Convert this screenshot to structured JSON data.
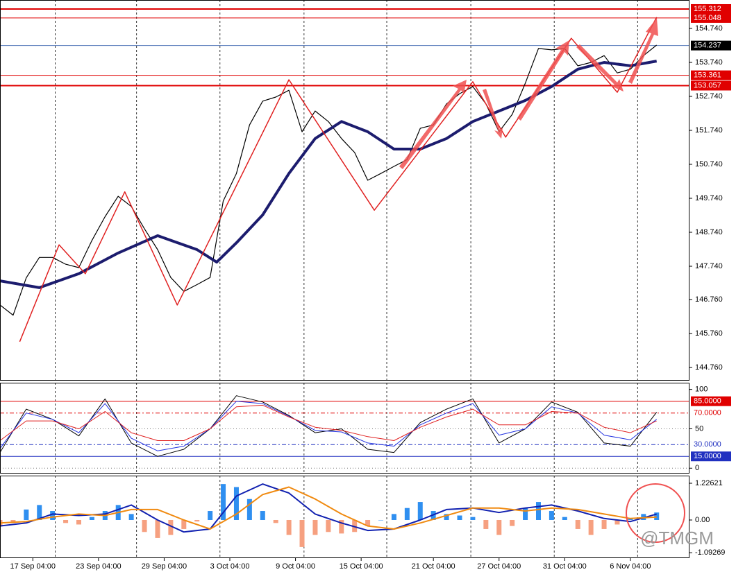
{
  "chart_data": [
    {
      "type": "line",
      "xlim": [
        0,
        105
      ],
      "ylim": [
        144.373,
        155.577
      ],
      "yticks": [
        {
          "value": 154.74,
          "label": "154.740"
        },
        {
          "value": 153.74,
          "label": "153.740"
        },
        {
          "value": 152.74,
          "label": "152.740"
        },
        {
          "value": 151.74,
          "label": "151.740"
        },
        {
          "value": 150.74,
          "label": "150.740"
        },
        {
          "value": 149.74,
          "label": "149.740"
        },
        {
          "value": 148.74,
          "label": "148.740"
        },
        {
          "value": 147.74,
          "label": "147.740"
        },
        {
          "value": 146.76,
          "label": "146.760"
        },
        {
          "value": 145.76,
          "label": "145.760"
        },
        {
          "value": 144.76,
          "label": "144.760"
        }
      ],
      "vlines": [
        8.4,
        20.8,
        33.5,
        46.3,
        58.9,
        71.7,
        84.4,
        97.1
      ],
      "levels": [
        {
          "value": 155.312,
          "color": "#e00000",
          "width": 2,
          "label_color": "#e00000"
        },
        {
          "value": 155.048,
          "color": "#e00000",
          "width": 1,
          "label_color": "#e00000"
        },
        {
          "value": 154.237,
          "color": "#4a6fb5",
          "width": 1,
          "label_color": "#000000"
        },
        {
          "value": 153.361,
          "color": "#e00000",
          "width": 1,
          "label_color": "#e00000"
        },
        {
          "value": 153.057,
          "color": "#e00000",
          "width": 2,
          "label_color": "#e00000"
        }
      ],
      "series": [
        {
          "color": "#000000",
          "width": 1.2,
          "x": [
            0,
            2,
            4,
            6,
            8,
            10,
            12,
            14,
            16,
            18,
            20,
            22,
            24,
            26,
            28,
            30,
            32,
            34,
            36,
            38,
            40,
            42,
            44,
            46,
            48,
            50,
            52,
            54,
            56,
            58,
            60,
            62,
            64,
            66,
            68,
            70,
            72,
            74,
            76,
            78,
            80,
            82,
            84,
            86,
            88,
            90,
            92,
            94,
            96,
            98,
            100
          ],
          "values": [
            146.6,
            146.3,
            147.4,
            148.0,
            148.0,
            147.8,
            147.7,
            148.5,
            149.2,
            149.8,
            149.5,
            148.84,
            148.23,
            147.41,
            147.0,
            147.2,
            147.41,
            149.66,
            150.47,
            151.9,
            152.6,
            152.72,
            152.92,
            151.7,
            152.31,
            152.0,
            151.5,
            151.09,
            150.27,
            150.47,
            150.68,
            150.88,
            151.8,
            151.9,
            152.52,
            152.82,
            153.03,
            152.52,
            151.7,
            152.21,
            153.13,
            154.15,
            154.11,
            154.15,
            153.64,
            153.74,
            153.94,
            153.43,
            153.54,
            153.94,
            154.25
          ]
        },
        {
          "color": "#1c1c6e",
          "width": 4,
          "x": [
            0,
            6,
            12,
            18,
            24,
            30,
            33,
            36,
            40,
            44,
            48,
            52,
            56,
            60,
            64,
            68,
            72,
            76,
            80,
            84,
            88,
            92,
            96,
            100
          ],
          "values": [
            147.31,
            147.11,
            147.52,
            148.13,
            148.64,
            148.23,
            147.86,
            148.43,
            149.25,
            150.47,
            151.5,
            152.0,
            151.7,
            151.19,
            151.19,
            151.5,
            152.0,
            152.31,
            152.62,
            153.03,
            153.54,
            153.74,
            153.64,
            153.78
          ]
        },
        {
          "color": "#e02020",
          "width": 1.5,
          "x": [
            3,
            9,
            13,
            19,
            27,
            44,
            57,
            72,
            77,
            87,
            94,
            100
          ],
          "values": [
            145.52,
            148.37,
            147.52,
            149.93,
            146.6,
            153.23,
            149.39,
            153.17,
            151.54,
            154.45,
            152.86,
            155.07
          ]
        }
      ]
    },
    {
      "type": "line",
      "xlim": [
        0,
        105
      ],
      "ylim": [
        -6.8,
        108.5
      ],
      "yticks": [
        100,
        50,
        0
      ],
      "levels": [
        {
          "value": 85,
          "label": "85.0000",
          "color": "#e00000",
          "dash": "",
          "boxed": true
        },
        {
          "value": 70,
          "label": "70.0000",
          "color": "#e00000",
          "dash": "6 3 2 3",
          "boxed": false
        },
        {
          "value": 30,
          "label": "30.0000",
          "color": "#2030c0",
          "dash": "6 3 2 3",
          "boxed": false
        },
        {
          "value": 15,
          "label": "15.0000",
          "color": "#2030c0",
          "dash": "",
          "boxed": true
        }
      ],
      "series": [
        {
          "color": "#000000",
          "width": 1,
          "x": [
            0,
            4,
            8,
            12,
            16,
            20,
            24,
            28,
            32,
            36,
            40,
            44,
            48,
            52,
            56,
            60,
            64,
            68,
            72,
            76,
            80,
            84,
            88,
            92,
            96,
            100
          ],
          "values": [
            20,
            75,
            62,
            41,
            88,
            32,
            15,
            24,
            50,
            92,
            84,
            67,
            45,
            50,
            24,
            20,
            58,
            75,
            88,
            32,
            50,
            84,
            71,
            32,
            28,
            71
          ]
        },
        {
          "color": "#2030e0",
          "width": 1,
          "x": [
            0,
            4,
            8,
            12,
            16,
            20,
            24,
            28,
            32,
            36,
            40,
            44,
            48,
            52,
            56,
            60,
            64,
            68,
            72,
            76,
            80,
            84,
            88,
            92,
            96,
            100
          ],
          "values": [
            25,
            70,
            62,
            45,
            82,
            38,
            22,
            28,
            50,
            85,
            82,
            66,
            48,
            46,
            32,
            28,
            55,
            70,
            82,
            42,
            50,
            78,
            70,
            42,
            36,
            62
          ]
        },
        {
          "color": "#e02020",
          "width": 1,
          "x": [
            0,
            4,
            8,
            12,
            16,
            20,
            24,
            28,
            32,
            36,
            40,
            44,
            48,
            52,
            56,
            60,
            64,
            68,
            72,
            76,
            80,
            84,
            88,
            92,
            96,
            100
          ],
          "values": [
            35,
            60,
            60,
            50,
            72,
            45,
            35,
            35,
            50,
            78,
            80,
            65,
            52,
            48,
            40,
            35,
            52,
            65,
            75,
            55,
            55,
            72,
            70,
            52,
            45,
            60
          ]
        }
      ]
    },
    {
      "type": "bar",
      "xlim": [
        0,
        105
      ],
      "ylim": [
        -1.273,
        1.481
      ],
      "yticks": [
        1.22621,
        {
          "value": 0,
          "label": "0.00"
        },
        -1.09269
      ],
      "xticks": [
        {
          "value": 5,
          "label": "17 Sep 04:00"
        },
        {
          "value": 15,
          "label": "23 Sep 04:00"
        },
        {
          "value": 25,
          "label": "29 Sep 04:00"
        },
        {
          "value": 35,
          "label": "3 Oct 04:00"
        },
        {
          "value": 45,
          "label": "9 Oct 04:00"
        },
        {
          "value": 55,
          "label": "15 Oct 04:00"
        },
        {
          "value": 66,
          "label": "21 Oct 04:00"
        },
        {
          "value": 76,
          "label": "27 Oct 04:00"
        },
        {
          "value": 86,
          "label": "31 Oct 04:00"
        },
        {
          "value": 96,
          "label": "6 Nov 04:00"
        }
      ],
      "bars": {
        "colors": [
          "#2f8ff0",
          "#f6a080"
        ],
        "x": [
          0,
          2,
          4,
          6,
          8,
          10,
          12,
          14,
          16,
          18,
          20,
          22,
          24,
          26,
          28,
          30,
          32,
          34,
          36,
          38,
          40,
          42,
          44,
          46,
          48,
          50,
          52,
          54,
          56,
          58,
          60,
          62,
          64,
          66,
          68,
          70,
          72,
          74,
          76,
          78,
          80,
          82,
          84,
          86,
          88,
          90,
          92,
          94,
          96,
          98,
          100
        ],
        "values": [
          -0.2,
          -0.1,
          0.35,
          0.5,
          0.3,
          -0.1,
          -0.15,
          0.1,
          0.3,
          0.5,
          0.2,
          -0.4,
          -0.6,
          -0.5,
          -0.3,
          -0.05,
          0.3,
          1.2,
          1.1,
          0.7,
          0.3,
          -0.1,
          -0.5,
          -0.9,
          -0.5,
          -0.4,
          -0.45,
          -0.4,
          -0.2,
          0,
          0.2,
          0.4,
          0.6,
          0.3,
          0.2,
          0.15,
          0.1,
          -0.3,
          -0.5,
          -0.2,
          0.4,
          0.6,
          0.3,
          0.1,
          -0.3,
          -0.5,
          -0.3,
          -0.15,
          0.05,
          0.2,
          0.25
        ]
      },
      "series": [
        {
          "color": "#1020b0",
          "width": 2,
          "x": [
            0,
            4,
            8,
            12,
            16,
            20,
            24,
            28,
            32,
            36,
            40,
            44,
            48,
            52,
            56,
            60,
            64,
            68,
            72,
            76,
            80,
            84,
            88,
            92,
            96,
            100
          ],
          "values": [
            -0.2,
            -0.1,
            0.2,
            0.15,
            0.2,
            0.5,
            0.0,
            -0.4,
            -0.3,
            0.8,
            1.2,
            0.9,
            0.2,
            -0.1,
            -0.35,
            -0.3,
            0.0,
            0.35,
            0.4,
            0.25,
            0.4,
            0.5,
            0.3,
            0.05,
            -0.05,
            0.2
          ]
        },
        {
          "color": "#f08a10",
          "width": 2,
          "x": [
            0,
            4,
            8,
            12,
            16,
            20,
            24,
            28,
            32,
            36,
            40,
            44,
            48,
            52,
            56,
            60,
            64,
            68,
            72,
            76,
            80,
            84,
            88,
            92,
            96,
            100
          ],
          "values": [
            -0.1,
            -0.05,
            0.1,
            0.2,
            0.15,
            0.35,
            0.35,
            0.0,
            -0.3,
            0.2,
            0.85,
            1.1,
            0.7,
            0.2,
            -0.2,
            -0.3,
            -0.1,
            0.15,
            0.4,
            0.4,
            0.3,
            0.4,
            0.35,
            0.2,
            0.05,
            0.1
          ]
        }
      ]
    }
  ],
  "watermark": "@TMGM"
}
